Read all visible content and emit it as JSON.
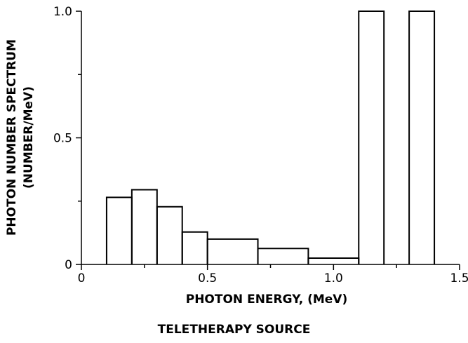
{
  "chart_data": {
    "type": "bar",
    "caption": "TELETHERAPY SOURCE",
    "xlabel": "PHOTON ENERGY, (MeV)",
    "ylabel_line1": "PHOTON NUMBER SPECTRUM",
    "ylabel_line2": "(NUMBER/MeV)",
    "xlim": [
      0,
      1.5
    ],
    "ylim": [
      0,
      1.0
    ],
    "x_ticks": [
      0,
      0.5,
      1.0,
      1.5
    ],
    "x_tick_labels": [
      "0",
      "0.5",
      "1.0",
      "1.5"
    ],
    "y_ticks": [
      0,
      0.5,
      1.0
    ],
    "y_tick_labels": [
      "0",
      "0.5",
      "1.0"
    ],
    "grid": false,
    "bins": [
      {
        "x0": 0.1,
        "x1": 0.2,
        "value": 0.265
      },
      {
        "x0": 0.2,
        "x1": 0.3,
        "value": 0.295
      },
      {
        "x0": 0.3,
        "x1": 0.4,
        "value": 0.228
      },
      {
        "x0": 0.4,
        "x1": 0.5,
        "value": 0.128
      },
      {
        "x0": 0.5,
        "x1": 0.7,
        "value": 0.1
      },
      {
        "x0": 0.7,
        "x1": 0.9,
        "value": 0.063
      },
      {
        "x0": 0.9,
        "x1": 1.1,
        "value": 0.025
      },
      {
        "x0": 1.1,
        "x1": 1.2,
        "value": 1.0
      },
      {
        "x0": 1.2,
        "x1": 1.3,
        "value": 0
      },
      {
        "x0": 1.3,
        "x1": 1.4,
        "value": 1.0
      }
    ]
  }
}
